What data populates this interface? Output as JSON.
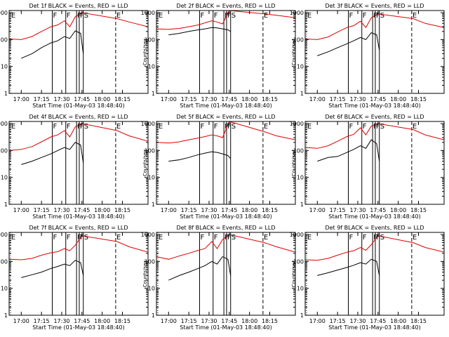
{
  "figure": {
    "panel_title_suffix": " BLACK = Events, RED = LLD",
    "xlabel": "Start Time (01-May-03 18:48:40)",
    "ylabel": "Counts/sec",
    "x_tick_labels": [
      "17:00",
      "17:15",
      "17:30",
      "17:45",
      "18:00",
      "18:15"
    ],
    "y_tick_labels": [
      "1",
      "10",
      "100",
      "1000"
    ],
    "marker_labels": {
      "start": "E",
      "flare": "F",
      "saa": "S",
      "end": "E"
    },
    "colors": {
      "events": "#000000",
      "lld": "#e00000",
      "axes": "#000000"
    }
  },
  "chart_data": [
    {
      "type": "line",
      "title": "Det 1f",
      "yscale": "log",
      "ylim": [
        1,
        1200
      ],
      "xlim": [
        "16:51",
        "18:34"
      ],
      "series": [
        {
          "name": "BLACK = Events",
          "x": [
            "17:00",
            "17:08",
            "17:15",
            "17:22",
            "17:27",
            "17:32",
            "17:36",
            "17:40",
            "17:44",
            "17:46"
          ],
          "values": [
            20,
            30,
            50,
            75,
            90,
            130,
            110,
            210,
            170,
            30
          ]
        },
        {
          "name": "RED = LLD",
          "x": [
            "16:51",
            "17:00",
            "17:08",
            "17:15",
            "17:22",
            "17:27",
            "17:32",
            "17:36",
            "17:40",
            "17:45",
            "18:11",
            "18:20",
            "18:34"
          ],
          "values": [
            105,
            100,
            130,
            200,
            300,
            350,
            500,
            300,
            700,
            1000,
            600,
            450,
            300
          ]
        }
      ],
      "vertical_markers": [
        {
          "label": "E",
          "time": "16:52",
          "style": "dotted"
        },
        {
          "label": "F",
          "time": "17:23",
          "style": "solid"
        },
        {
          "label": "F",
          "time": "17:33",
          "style": "solid"
        },
        {
          "label": "F",
          "time": "17:41",
          "style": "solid"
        },
        {
          "label": "F",
          "time": "17:43",
          "style": "solid"
        },
        {
          "label": "S",
          "time": "17:46",
          "style": "solid"
        },
        {
          "label": "E",
          "time": "18:10",
          "style": "dashed"
        }
      ]
    },
    {
      "type": "line",
      "title": "Det 2f",
      "yscale": "log",
      "ylim": [
        1,
        1200
      ],
      "xlim": [
        "16:51",
        "18:34"
      ],
      "series": [
        {
          "name": "BLACK = Events",
          "x": [
            "17:00",
            "17:08",
            "17:15",
            "17:22",
            "17:27",
            "17:32",
            "17:36",
            "17:40",
            "17:44",
            "17:46"
          ],
          "values": [
            150,
            170,
            200,
            230,
            250,
            280,
            270,
            250,
            230,
            200
          ]
        },
        {
          "name": "RED = LLD",
          "x": [
            "16:51",
            "17:00",
            "17:08",
            "17:15",
            "17:22",
            "17:27",
            "17:32",
            "17:36",
            "17:40",
            "17:45",
            "18:11",
            "18:20",
            "18:34"
          ],
          "values": [
            250,
            240,
            260,
            300,
            350,
            420,
            500,
            450,
            380,
            1200,
            900,
            800,
            650
          ]
        }
      ],
      "vertical_markers": [
        {
          "label": "E",
          "time": "16:52",
          "style": "dotted"
        },
        {
          "label": "F",
          "time": "17:23",
          "style": "solid"
        },
        {
          "label": "F",
          "time": "17:33",
          "style": "solid"
        },
        {
          "label": "F",
          "time": "17:41",
          "style": "solid"
        },
        {
          "label": "F",
          "time": "17:43",
          "style": "solid"
        },
        {
          "label": "S",
          "time": "17:46",
          "style": "solid"
        },
        {
          "label": "E",
          "time": "18:10",
          "style": "dashed"
        }
      ]
    },
    {
      "type": "line",
      "title": "Det 3f",
      "yscale": "log",
      "ylim": [
        1,
        1200
      ],
      "xlim": [
        "16:51",
        "18:34"
      ],
      "series": [
        {
          "name": "BLACK = Events",
          "x": [
            "17:00",
            "17:08",
            "17:15",
            "17:22",
            "17:27",
            "17:32",
            "17:36",
            "17:40",
            "17:44",
            "17:46"
          ],
          "values": [
            25,
            35,
            50,
            70,
            90,
            120,
            100,
            180,
            150,
            40
          ]
        },
        {
          "name": "RED = LLD",
          "x": [
            "16:51",
            "17:00",
            "17:08",
            "17:15",
            "17:22",
            "17:27",
            "17:32",
            "17:36",
            "17:40",
            "17:45",
            "18:11",
            "18:20",
            "18:34"
          ],
          "values": [
            105,
            100,
            125,
            190,
            280,
            330,
            480,
            280,
            650,
            900,
            600,
            400,
            280
          ]
        }
      ],
      "vertical_markers": [
        {
          "label": "E",
          "time": "16:52",
          "style": "dotted"
        },
        {
          "label": "F",
          "time": "17:23",
          "style": "solid"
        },
        {
          "label": "F",
          "time": "17:33",
          "style": "solid"
        },
        {
          "label": "F",
          "time": "17:41",
          "style": "solid"
        },
        {
          "label": "F",
          "time": "17:43",
          "style": "solid"
        },
        {
          "label": "S",
          "time": "17:46",
          "style": "solid"
        },
        {
          "label": "E",
          "time": "18:10",
          "style": "dashed"
        }
      ]
    },
    {
      "type": "line",
      "title": "Det 4f",
      "yscale": "log",
      "ylim": [
        1,
        1200
      ],
      "xlim": [
        "16:51",
        "18:34"
      ],
      "series": [
        {
          "name": "BLACK = Events",
          "x": [
            "17:00",
            "17:08",
            "17:15",
            "17:22",
            "17:27",
            "17:32",
            "17:36",
            "17:40",
            "17:44",
            "17:46"
          ],
          "values": [
            30,
            40,
            55,
            75,
            100,
            130,
            110,
            200,
            160,
            35
          ]
        },
        {
          "name": "RED = LLD",
          "x": [
            "16:51",
            "17:00",
            "17:08",
            "17:15",
            "17:22",
            "17:27",
            "17:32",
            "17:36",
            "17:40",
            "17:45",
            "18:11",
            "18:20",
            "18:34"
          ],
          "values": [
            100,
            110,
            140,
            210,
            320,
            380,
            550,
            320,
            750,
            1000,
            550,
            350,
            220
          ]
        }
      ],
      "vertical_markers": [
        {
          "label": "E",
          "time": "16:52",
          "style": "dotted"
        },
        {
          "label": "F",
          "time": "17:23",
          "style": "solid"
        },
        {
          "label": "F",
          "time": "17:33",
          "style": "solid"
        },
        {
          "label": "F",
          "time": "17:41",
          "style": "solid"
        },
        {
          "label": "F",
          "time": "17:43",
          "style": "solid"
        },
        {
          "label": "S",
          "time": "17:46",
          "style": "solid"
        },
        {
          "label": "E",
          "time": "18:10",
          "style": "dashed"
        }
      ]
    },
    {
      "type": "line",
      "title": "Det 5f",
      "yscale": "log",
      "ylim": [
        1,
        1200
      ],
      "xlim": [
        "16:51",
        "18:34"
      ],
      "series": [
        {
          "name": "BLACK = Events",
          "x": [
            "17:00",
            "17:08",
            "17:15",
            "17:22",
            "17:27",
            "17:32",
            "17:36",
            "17:40",
            "17:44",
            "17:46"
          ],
          "values": [
            40,
            45,
            55,
            70,
            80,
            90,
            85,
            75,
            65,
            50
          ]
        },
        {
          "name": "RED = LLD",
          "x": [
            "16:51",
            "17:00",
            "17:08",
            "17:15",
            "17:22",
            "17:27",
            "17:32",
            "17:36",
            "17:40",
            "17:45",
            "18:11",
            "18:20",
            "18:34"
          ],
          "values": [
            200,
            190,
            210,
            250,
            290,
            330,
            380,
            350,
            300,
            1200,
            500,
            350,
            250
          ]
        }
      ],
      "vertical_markers": [
        {
          "label": "E",
          "time": "16:52",
          "style": "dotted"
        },
        {
          "label": "F",
          "time": "17:23",
          "style": "solid"
        },
        {
          "label": "F",
          "time": "17:33",
          "style": "solid"
        },
        {
          "label": "F",
          "time": "17:41",
          "style": "solid"
        },
        {
          "label": "F",
          "time": "17:43",
          "style": "solid"
        },
        {
          "label": "S",
          "time": "17:46",
          "style": "solid"
        },
        {
          "label": "E",
          "time": "18:10",
          "style": "dashed"
        }
      ]
    },
    {
      "type": "line",
      "title": "Det 6f",
      "yscale": "log",
      "ylim": [
        1,
        1200
      ],
      "xlim": [
        "16:51",
        "18:34"
      ],
      "series": [
        {
          "name": "BLACK = Events",
          "x": [
            "17:00",
            "17:08",
            "17:15",
            "17:22",
            "17:27",
            "17:32",
            "17:36",
            "17:40",
            "17:44",
            "17:46"
          ],
          "values": [
            40,
            55,
            60,
            85,
            110,
            150,
            120,
            250,
            180,
            40
          ]
        },
        {
          "name": "RED = LLD",
          "x": [
            "16:51",
            "17:00",
            "17:08",
            "17:15",
            "17:22",
            "17:27",
            "17:32",
            "17:36",
            "17:40",
            "17:45",
            "18:11",
            "18:20",
            "18:34"
          ],
          "values": [
            130,
            120,
            150,
            220,
            330,
            400,
            700,
            380,
            800,
            1000,
            600,
            380,
            250
          ]
        }
      ],
      "vertical_markers": [
        {
          "label": "E",
          "time": "16:52",
          "style": "dotted"
        },
        {
          "label": "F",
          "time": "17:23",
          "style": "solid"
        },
        {
          "label": "F",
          "time": "17:33",
          "style": "solid"
        },
        {
          "label": "F",
          "time": "17:41",
          "style": "solid"
        },
        {
          "label": "F",
          "time": "17:43",
          "style": "solid"
        },
        {
          "label": "S",
          "time": "17:46",
          "style": "solid"
        },
        {
          "label": "E",
          "time": "18:10",
          "style": "dashed"
        }
      ]
    },
    {
      "type": "line",
      "title": "Det 7f",
      "yscale": "log",
      "ylim": [
        1,
        1200
      ],
      "xlim": [
        "16:51",
        "18:34"
      ],
      "series": [
        {
          "name": "BLACK = Events",
          "x": [
            "17:00",
            "17:08",
            "17:15",
            "17:22",
            "17:27",
            "17:32",
            "17:36",
            "17:40",
            "17:44",
            "17:46"
          ],
          "values": [
            25,
            32,
            40,
            55,
            65,
            80,
            70,
            110,
            90,
            30
          ]
        },
        {
          "name": "RED = LLD",
          "x": [
            "16:51",
            "17:00",
            "17:08",
            "17:15",
            "17:22",
            "17:27",
            "17:32",
            "17:36",
            "17:40",
            "17:45",
            "18:11",
            "18:20",
            "18:34"
          ],
          "values": [
            120,
            115,
            130,
            170,
            210,
            230,
            300,
            250,
            400,
            900,
            550,
            350,
            220
          ]
        }
      ],
      "vertical_markers": [
        {
          "label": "E",
          "time": "16:52",
          "style": "dotted"
        },
        {
          "label": "F",
          "time": "17:23",
          "style": "solid"
        },
        {
          "label": "F",
          "time": "17:33",
          "style": "solid"
        },
        {
          "label": "F",
          "time": "17:41",
          "style": "solid"
        },
        {
          "label": "F",
          "time": "17:43",
          "style": "solid"
        },
        {
          "label": "S",
          "time": "17:46",
          "style": "solid"
        },
        {
          "label": "E",
          "time": "18:10",
          "style": "dashed"
        }
      ]
    },
    {
      "type": "line",
      "title": "Det 8f",
      "yscale": "log",
      "ylim": [
        1,
        1200
      ],
      "xlim": [
        "16:51",
        "18:34"
      ],
      "series": [
        {
          "name": "BLACK = Events",
          "x": [
            "17:00",
            "17:08",
            "17:15",
            "17:22",
            "17:27",
            "17:32",
            "17:36",
            "17:40",
            "17:44",
            "17:46"
          ],
          "values": [
            20,
            30,
            40,
            55,
            70,
            100,
            80,
            150,
            120,
            30
          ]
        },
        {
          "name": "RED = LLD",
          "x": [
            "16:51",
            "17:00",
            "17:08",
            "17:15",
            "17:22",
            "17:27",
            "17:32",
            "17:36",
            "17:40",
            "17:45",
            "18:11",
            "18:20",
            "18:34"
          ],
          "values": [
            150,
            120,
            160,
            200,
            260,
            300,
            550,
            300,
            650,
            1000,
            500,
            350,
            220
          ]
        }
      ],
      "vertical_markers": [
        {
          "label": "E",
          "time": "16:52",
          "style": "dotted"
        },
        {
          "label": "F",
          "time": "17:23",
          "style": "solid"
        },
        {
          "label": "F",
          "time": "17:33",
          "style": "solid"
        },
        {
          "label": "F",
          "time": "17:41",
          "style": "solid"
        },
        {
          "label": "F",
          "time": "17:43",
          "style": "solid"
        },
        {
          "label": "S",
          "time": "17:46",
          "style": "solid"
        },
        {
          "label": "E",
          "time": "18:10",
          "style": "dashed"
        }
      ]
    },
    {
      "type": "line",
      "title": "Det 9f",
      "yscale": "log",
      "ylim": [
        1,
        1200
      ],
      "xlim": [
        "16:51",
        "18:34"
      ],
      "series": [
        {
          "name": "BLACK = Events",
          "x": [
            "17:00",
            "17:08",
            "17:15",
            "17:22",
            "17:27",
            "17:32",
            "17:36",
            "17:40",
            "17:44",
            "17:46"
          ],
          "values": [
            30,
            38,
            48,
            60,
            72,
            90,
            80,
            120,
            100,
            30
          ]
        },
        {
          "name": "RED = LLD",
          "x": [
            "16:51",
            "17:00",
            "17:08",
            "17:15",
            "17:22",
            "17:27",
            "17:32",
            "17:36",
            "17:40",
            "17:45",
            "18:11",
            "18:20",
            "18:34"
          ],
          "values": [
            115,
            110,
            130,
            170,
            220,
            250,
            330,
            260,
            420,
            900,
            500,
            330,
            220
          ]
        }
      ],
      "vertical_markers": [
        {
          "label": "E",
          "time": "16:52",
          "style": "dotted"
        },
        {
          "label": "F",
          "time": "17:23",
          "style": "solid"
        },
        {
          "label": "F",
          "time": "17:33",
          "style": "solid"
        },
        {
          "label": "F",
          "time": "17:41",
          "style": "solid"
        },
        {
          "label": "F",
          "time": "17:43",
          "style": "solid"
        },
        {
          "label": "S",
          "time": "17:46",
          "style": "solid"
        },
        {
          "label": "E",
          "time": "18:10",
          "style": "dashed"
        }
      ]
    }
  ]
}
